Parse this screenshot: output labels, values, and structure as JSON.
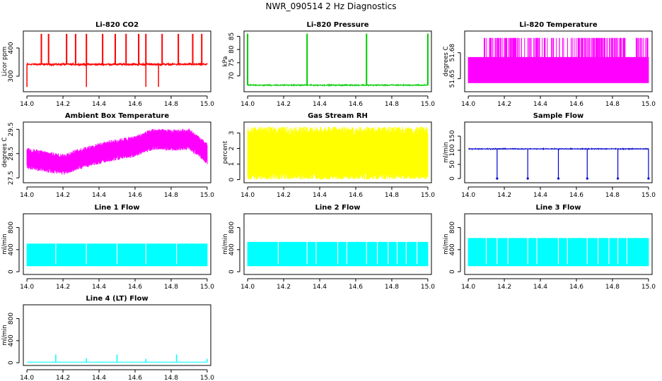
{
  "figure": {
    "title": "NWR_090514  2 Hz Diagnostics",
    "width": 936,
    "height": 540
  },
  "chart_data": [
    {
      "type": "line",
      "title": "Li-820 CO2",
      "ylabel": "Licor ppm",
      "color": "#ff0000",
      "xlim": [
        13.98,
        15.02
      ],
      "ylim": [
        245,
        460
      ],
      "xticks": [
        14.0,
        14.2,
        14.4,
        14.6,
        14.8,
        15.0
      ],
      "xtick_labels": [
        "14.0",
        "14.2",
        "14.4",
        "14.6",
        "14.8",
        "15.0"
      ],
      "yticks": [
        300,
        400
      ],
      "ytick_labels": [
        "300",
        "400"
      ],
      "baseline": 342,
      "noise": 6,
      "spikes_up": [
        14.08,
        14.12,
        14.22,
        14.27,
        14.33,
        14.42,
        14.49,
        14.55,
        14.62,
        14.66,
        14.75,
        14.84,
        14.92,
        14.97
      ],
      "spike_up_value": 450,
      "spikes_down": [
        14.0,
        14.33,
        14.66,
        14.73
      ],
      "spike_down_value": 262
    },
    {
      "type": "line",
      "title": "Li-820 Pressure",
      "ylabel": "kPa",
      "color": "#00cc00",
      "xlim": [
        13.98,
        15.02
      ],
      "ylim": [
        64,
        87
      ],
      "xticks": [
        14.0,
        14.2,
        14.4,
        14.6,
        14.8,
        15.0
      ],
      "xtick_labels": [
        "14.0",
        "14.2",
        "14.4",
        "14.6",
        "14.8",
        "15.0"
      ],
      "yticks": [
        70,
        75,
        80,
        85
      ],
      "ytick_labels": [
        "70",
        "75",
        "80",
        "85"
      ],
      "baseline": 66.5,
      "noise": 0.3,
      "spikes_up": [
        14.0,
        14.33,
        14.66,
        15.0
      ],
      "spike_up_value": 86
    },
    {
      "type": "area",
      "title": "Li-820 Temperature",
      "ylabel": "degrees C",
      "color": "#ff00ff",
      "xlim": [
        13.98,
        15.02
      ],
      "ylim": [
        51.635,
        51.705
      ],
      "xticks": [
        14.0,
        14.2,
        14.4,
        14.6,
        14.8,
        15.0
      ],
      "xtick_labels": [
        "14.0",
        "14.2",
        "14.4",
        "14.6",
        "14.8",
        "15.0"
      ],
      "yticks": [
        51.65,
        51.68
      ],
      "ytick_labels": [
        "51.65",
        "51.68"
      ],
      "band_low": 51.645,
      "band_high": 51.675,
      "spike_value": 51.697
    },
    {
      "type": "area",
      "title": "Ambient Box Temperature",
      "ylabel": "degrees C",
      "color": "#ff00ff",
      "xlim": [
        13.98,
        15.02
      ],
      "ylim": [
        27.3,
        29.8
      ],
      "xticks": [
        14.0,
        14.2,
        14.4,
        14.6,
        14.8,
        15.0
      ],
      "xtick_labels": [
        "14.0",
        "14.2",
        "14.4",
        "14.6",
        "14.8",
        "15.0"
      ],
      "yticks": [
        27.5,
        28.5,
        29.5
      ],
      "ytick_labels": [
        "27.5",
        "28.5",
        "29.5"
      ],
      "trend_x": [
        14.0,
        14.2,
        14.3,
        14.45,
        14.6,
        14.7,
        14.8,
        14.9,
        15.0
      ],
      "trend_y": [
        28.3,
        28.05,
        28.3,
        28.6,
        28.8,
        29.1,
        29.05,
        29.1,
        28.5
      ],
      "spread": 0.4
    },
    {
      "type": "area",
      "title": "Gas Stream RH",
      "ylabel": "percent",
      "color": "#ffff00",
      "xlim": [
        13.98,
        15.02
      ],
      "ylim": [
        -0.2,
        3.7
      ],
      "xticks": [
        14.0,
        14.2,
        14.4,
        14.6,
        14.8,
        15.0
      ],
      "xtick_labels": [
        "14.0",
        "14.2",
        "14.4",
        "14.6",
        "14.8",
        "15.0"
      ],
      "yticks": [
        0,
        1,
        2,
        3
      ],
      "ytick_labels": [
        "0",
        "1",
        "2",
        "3"
      ],
      "band_low": 0.5,
      "band_high": 2.8,
      "spike_low": 0.0,
      "spike_high": 3.4
    },
    {
      "type": "line",
      "title": "Sample Flow",
      "ylabel": "ml/min",
      "color": "#0000cc",
      "xlim": [
        13.98,
        15.02
      ],
      "ylim": [
        -15,
        200
      ],
      "xticks": [
        14.0,
        14.2,
        14.4,
        14.6,
        14.8,
        15.0
      ],
      "xtick_labels": [
        "14.0",
        "14.2",
        "14.4",
        "14.6",
        "14.8",
        "15.0"
      ],
      "yticks": [
        0,
        50,
        100,
        150
      ],
      "ytick_labels": [
        "0",
        "50",
        "100",
        "150"
      ],
      "baseline": 105,
      "noise": 2,
      "dips": [
        14.16,
        14.33,
        14.5,
        14.66,
        14.83,
        15.0
      ],
      "dip_value": 0
    },
    {
      "type": "area",
      "title": "Line 1 Flow",
      "ylabel": "ml/min",
      "color": "#00ffff",
      "xlim": [
        13.98,
        15.02
      ],
      "ylim": [
        -50,
        1050
      ],
      "xticks": [
        14.0,
        14.2,
        14.4,
        14.6,
        14.8,
        15.0
      ],
      "xtick_labels": [
        "14.0",
        "14.2",
        "14.4",
        "14.6",
        "14.8",
        "15.0"
      ],
      "yticks": [
        0,
        400,
        800
      ],
      "ytick_labels": [
        "0",
        "400",
        "800"
      ],
      "band_low": 100,
      "band_high": 510,
      "gaps": [
        14.16,
        14.33,
        14.5,
        14.66,
        14.83
      ]
    },
    {
      "type": "area",
      "title": "Line 2 Flow",
      "ylabel": "ml/min",
      "color": "#00ffff",
      "xlim": [
        13.98,
        15.02
      ],
      "ylim": [
        -50,
        1050
      ],
      "xticks": [
        14.0,
        14.2,
        14.4,
        14.6,
        14.8,
        15.0
      ],
      "xtick_labels": [
        "14.0",
        "14.2",
        "14.4",
        "14.6",
        "14.8",
        "15.0"
      ],
      "yticks": [
        0,
        400,
        800
      ],
      "ytick_labels": [
        "0",
        "400",
        "800"
      ],
      "band_low": 100,
      "band_high": 540,
      "gaps": [
        14.17,
        14.33,
        14.38,
        14.5,
        14.55,
        14.66,
        14.72,
        14.78,
        14.83,
        14.88,
        14.94
      ]
    },
    {
      "type": "area",
      "title": "Line 3 Flow",
      "ylabel": "ml/min",
      "color": "#00ffff",
      "xlim": [
        13.98,
        15.02
      ],
      "ylim": [
        -50,
        1050
      ],
      "xticks": [
        14.0,
        14.2,
        14.4,
        14.6,
        14.8,
        15.0
      ],
      "xtick_labels": [
        "14.0",
        "14.2",
        "14.4",
        "14.6",
        "14.8",
        "15.0"
      ],
      "yticks": [
        0,
        400,
        800
      ],
      "ytick_labels": [
        "0",
        "400",
        "800"
      ],
      "band_low": 100,
      "band_high": 610,
      "gaps": [
        14.1,
        14.16,
        14.22,
        14.33,
        14.38,
        14.5,
        14.55,
        14.66,
        14.72,
        14.78,
        14.83,
        14.88
      ]
    },
    {
      "type": "line",
      "title": "Line 4 (LT) Flow",
      "ylabel": "ml/min",
      "color": "#00ffff",
      "xlim": [
        13.98,
        15.02
      ],
      "ylim": [
        -50,
        1050
      ],
      "xticks": [
        14.0,
        14.2,
        14.4,
        14.6,
        14.8,
        15.0
      ],
      "xtick_labels": [
        "14.0",
        "14.2",
        "14.4",
        "14.6",
        "14.8",
        "15.0"
      ],
      "yticks": [
        0,
        400,
        800
      ],
      "ytick_labels": [
        "0",
        "400",
        "800"
      ],
      "baseline": 10,
      "noise": 2,
      "bumps": [
        14.16,
        14.33,
        14.5,
        14.66,
        14.83,
        15.0
      ],
      "bump_values": [
        150,
        80,
        150,
        70,
        150,
        70
      ]
    }
  ]
}
